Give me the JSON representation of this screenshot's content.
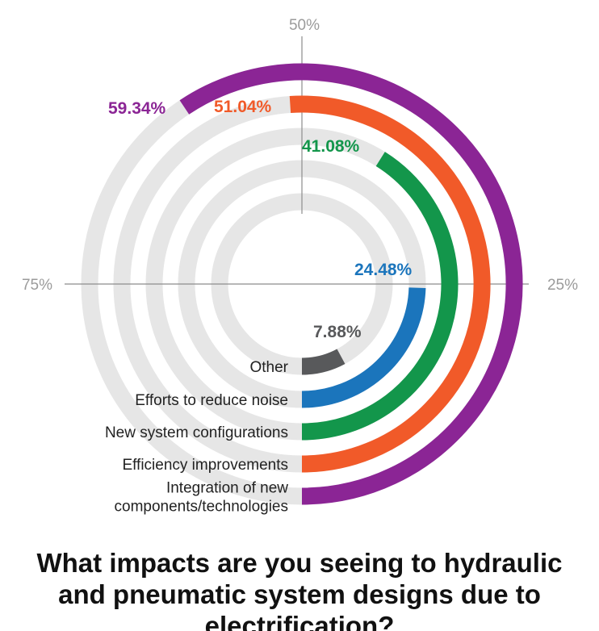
{
  "chart_data": {
    "type": "radial-bar",
    "title": "What impacts are you seeing to hydraulic and pneumatic system designs due to electrification?",
    "series": [
      {
        "name": "Integration of new components/technologies",
        "label_lines": [
          "Integration of new",
          "components/technologies"
        ],
        "value": 59.34,
        "value_label": "59.34%",
        "color": "#8b2595"
      },
      {
        "name": "Efficiency improvements",
        "label_lines": [
          "Efficiency improvements"
        ],
        "value": 51.04,
        "value_label": "51.04%",
        "color": "#f15a29"
      },
      {
        "name": "New system configurations",
        "label_lines": [
          "New system configurations"
        ],
        "value": 41.08,
        "value_label": "41.08%",
        "color": "#13964b"
      },
      {
        "name": "Efforts to reduce noise",
        "label_lines": [
          "Efforts to reduce noise"
        ],
        "value": 24.48,
        "value_label": "24.48%",
        "color": "#1b75bc"
      },
      {
        "name": "Other",
        "label_lines": [
          "Other"
        ],
        "value": 7.88,
        "value_label": "7.88%",
        "color": "#58595b"
      }
    ],
    "axis_ticks": [
      {
        "value": 25,
        "label": "25%"
      },
      {
        "value": 50,
        "label": "50%"
      },
      {
        "value": 75,
        "label": "75%"
      }
    ],
    "scale_max": 100,
    "track_color": "#e6e6e6",
    "axis_color": "#8c8c8c"
  }
}
